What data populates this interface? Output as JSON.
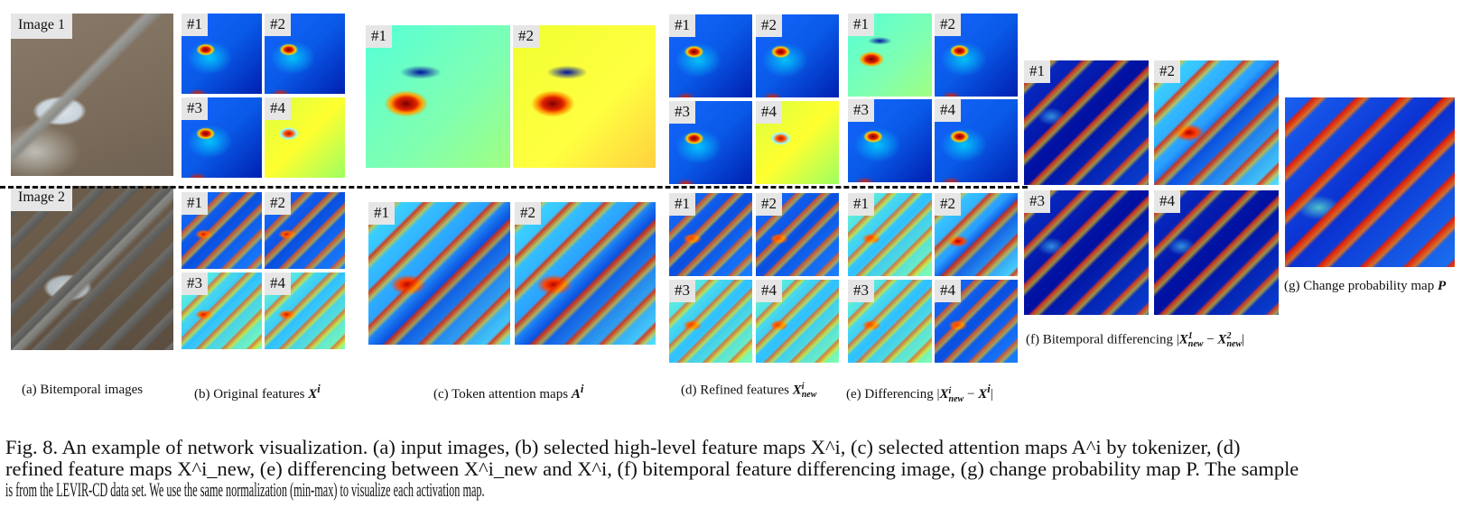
{
  "figure": {
    "panels": {
      "a": {
        "label": "(a) Bitemporal images",
        "tiles": [
          "Image 1",
          "Image 2"
        ]
      },
      "b": {
        "label_text": "(b) Original features ",
        "label_math": "X",
        "label_sup": "i",
        "tiles_top": [
          "#1",
          "#2",
          "#3",
          "#4"
        ],
        "tiles_bottom": [
          "#1",
          "#2",
          "#3",
          "#4"
        ]
      },
      "c": {
        "label_text": "(c) Token attention maps ",
        "label_math": "A",
        "label_sup": "i",
        "tiles_top": [
          "#1",
          "#2"
        ],
        "tiles_bottom": [
          "#1",
          "#2"
        ]
      },
      "d": {
        "label_text": "(d) Refined features ",
        "label_math": "X",
        "label_sup": "i",
        "label_sub": "new",
        "tiles_top": [
          "#1",
          "#2",
          "#3",
          "#4"
        ],
        "tiles_bottom": [
          "#1",
          "#2",
          "#3",
          "#4"
        ]
      },
      "e": {
        "label_text": "(e) Differencing ",
        "label_math_1": "X",
        "label_sup_1": "i",
        "label_sub_1": "new",
        "label_minus": " − ",
        "label_math_2": "X",
        "label_sup_2": "i",
        "tiles_top": [
          "#1",
          "#2",
          "#3",
          "#4"
        ],
        "tiles_bottom": [
          "#1",
          "#2",
          "#3",
          "#4"
        ]
      },
      "f": {
        "label_text": "(f) Bitemporal differencing ",
        "label_math_1": "X",
        "label_sup_1": "1",
        "label_sub_1": "new",
        "label_minus": " − ",
        "label_math_2": "X",
        "label_sup_2": "2",
        "label_sub_2": "new",
        "tiles": [
          "#1",
          "#2",
          "#3",
          "#4"
        ]
      },
      "g": {
        "label_text": "(g) Change probability map ",
        "label_math": "P"
      }
    },
    "caption": {
      "line1": "Fig. 8.  An example of network visualization. (a) input images, (b) selected high-level feature maps X^i, (c) selected attention maps A^i by tokenizer, (d)",
      "line2": "refined feature maps X^i_new, (e) differencing between X^i_new and X^i, (f) bitemporal feature differencing image, (g) change probability map P. The sample",
      "line3": "is from the LEVIR-CD data set. We use the same normalization (min-max) to visualize each activation map."
    }
  }
}
